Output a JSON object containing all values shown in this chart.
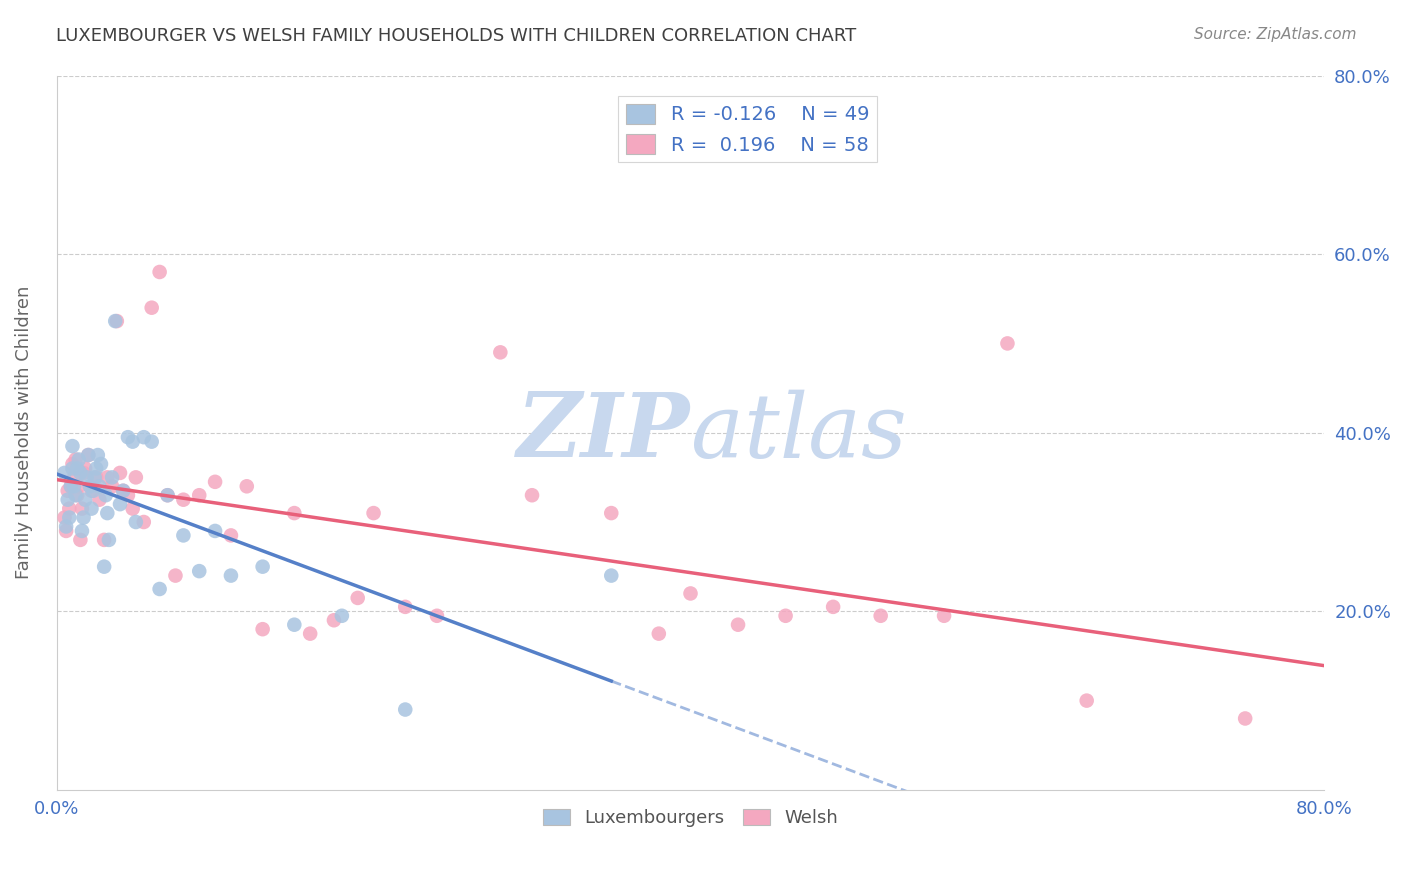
{
  "title": "LUXEMBOURGER VS WELSH FAMILY HOUSEHOLDS WITH CHILDREN CORRELATION CHART",
  "source": "Source: ZipAtlas.com",
  "ylabel": "Family Households with Children",
  "xlim": [
    0.0,
    0.8
  ],
  "ylim": [
    0.0,
    0.8
  ],
  "legend_bottom_labels": [
    "Luxembourgers",
    "Welsh"
  ],
  "lux_R": -0.126,
  "lux_N": 49,
  "welsh_R": 0.196,
  "welsh_N": 58,
  "lux_color": "#a8c4e0",
  "welsh_color": "#f4a8c0",
  "lux_line_color": "#5580c8",
  "welsh_line_color": "#e8607a",
  "background_color": "#ffffff",
  "grid_color": "#cccccc",
  "title_color": "#404040",
  "source_color": "#888888",
  "axis_label_color": "#4472c4",
  "lux_x": [
    0.005,
    0.006,
    0.007,
    0.008,
    0.009,
    0.01,
    0.01,
    0.011,
    0.012,
    0.013,
    0.014,
    0.015,
    0.016,
    0.017,
    0.018,
    0.019,
    0.02,
    0.021,
    0.022,
    0.023,
    0.024,
    0.025,
    0.026,
    0.027,
    0.028,
    0.03,
    0.031,
    0.032,
    0.033,
    0.035,
    0.037,
    0.04,
    0.042,
    0.045,
    0.048,
    0.05,
    0.055,
    0.06,
    0.065,
    0.07,
    0.08,
    0.09,
    0.1,
    0.11,
    0.13,
    0.15,
    0.18,
    0.22,
    0.35
  ],
  "lux_y": [
    0.355,
    0.295,
    0.325,
    0.305,
    0.34,
    0.385,
    0.36,
    0.34,
    0.33,
    0.36,
    0.37,
    0.355,
    0.29,
    0.305,
    0.325,
    0.35,
    0.375,
    0.34,
    0.315,
    0.335,
    0.35,
    0.36,
    0.375,
    0.34,
    0.365,
    0.25,
    0.33,
    0.31,
    0.28,
    0.35,
    0.525,
    0.32,
    0.335,
    0.395,
    0.39,
    0.3,
    0.395,
    0.39,
    0.225,
    0.33,
    0.285,
    0.245,
    0.29,
    0.24,
    0.25,
    0.185,
    0.195,
    0.09,
    0.24
  ],
  "welsh_x": [
    0.005,
    0.006,
    0.007,
    0.008,
    0.009,
    0.01,
    0.011,
    0.012,
    0.013,
    0.014,
    0.015,
    0.016,
    0.017,
    0.018,
    0.02,
    0.022,
    0.025,
    0.027,
    0.03,
    0.032,
    0.035,
    0.038,
    0.04,
    0.042,
    0.045,
    0.048,
    0.05,
    0.055,
    0.06,
    0.065,
    0.07,
    0.075,
    0.08,
    0.09,
    0.1,
    0.11,
    0.12,
    0.13,
    0.15,
    0.16,
    0.175,
    0.19,
    0.2,
    0.22,
    0.24,
    0.28,
    0.3,
    0.35,
    0.38,
    0.4,
    0.43,
    0.46,
    0.49,
    0.52,
    0.56,
    0.6,
    0.65,
    0.75
  ],
  "welsh_y": [
    0.305,
    0.29,
    0.335,
    0.315,
    0.34,
    0.365,
    0.35,
    0.37,
    0.33,
    0.34,
    0.28,
    0.315,
    0.355,
    0.36,
    0.375,
    0.335,
    0.35,
    0.325,
    0.28,
    0.35,
    0.34,
    0.525,
    0.355,
    0.335,
    0.33,
    0.315,
    0.35,
    0.3,
    0.54,
    0.58,
    0.33,
    0.24,
    0.325,
    0.33,
    0.345,
    0.285,
    0.34,
    0.18,
    0.31,
    0.175,
    0.19,
    0.215,
    0.31,
    0.205,
    0.195,
    0.49,
    0.33,
    0.31,
    0.175,
    0.22,
    0.185,
    0.195,
    0.205,
    0.195,
    0.195,
    0.5,
    0.1,
    0.08
  ]
}
